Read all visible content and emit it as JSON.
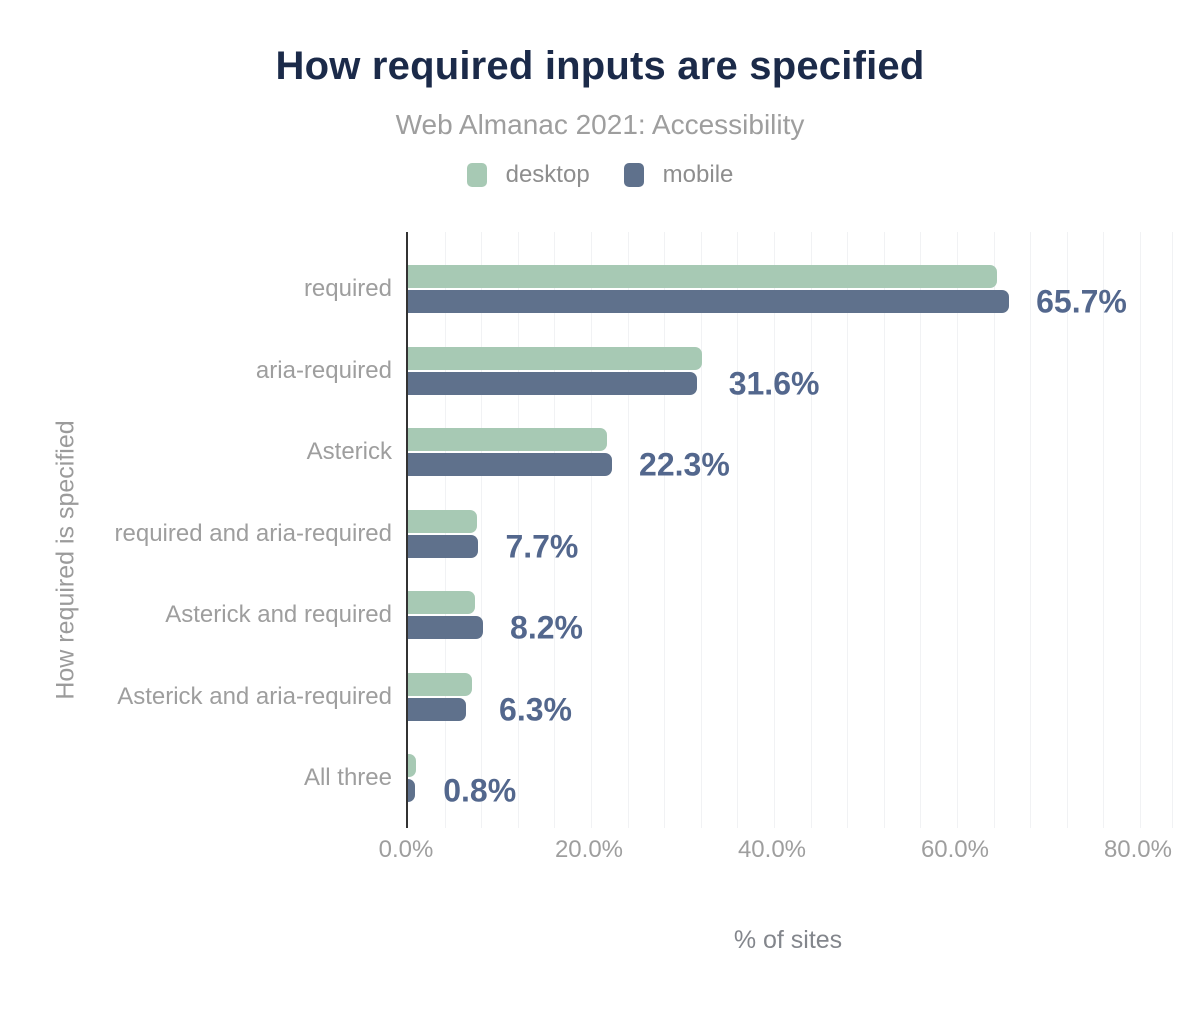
{
  "header": {
    "title": "How required inputs are specified",
    "subtitle": "Web Almanac 2021: Accessibility"
  },
  "legend": {
    "items": [
      {
        "label": "desktop",
        "color": "#a7c9b4"
      },
      {
        "label": "mobile",
        "color": "#5f718c"
      }
    ]
  },
  "axes": {
    "x_title": "% of sites",
    "y_title": "How required is specified",
    "x_ticks": [
      {
        "label": "0.0%",
        "value": 0
      },
      {
        "label": "20.0%",
        "value": 20
      },
      {
        "label": "40.0%",
        "value": 40
      },
      {
        "label": "60.0%",
        "value": 60
      },
      {
        "label": "80.0%",
        "value": 80
      }
    ]
  },
  "chart_data": {
    "type": "bar",
    "orientation": "horizontal",
    "title": "How required inputs are specified",
    "subtitle": "Web Almanac 2021: Accessibility",
    "xlabel": "% of sites",
    "ylabel": "How required is specified",
    "xlim": [
      0,
      83.5
    ],
    "gridline_step": 4,
    "grid": "vertical minor gridlines every 4%, no horizontal gridlines",
    "legend_position": "top-center",
    "categories": [
      "required",
      "aria-required",
      "Asterick",
      "required and aria-required",
      "Asterick and required",
      "Asterick and aria-required",
      "All three"
    ],
    "series": [
      {
        "name": "desktop",
        "color": "#a7c9b4",
        "values": [
          64.4,
          32.1,
          21.7,
          7.5,
          7.3,
          7.0,
          0.9
        ]
      },
      {
        "name": "mobile",
        "color": "#5f718c",
        "values": [
          65.7,
          31.6,
          22.3,
          7.7,
          8.2,
          6.3,
          0.8
        ]
      }
    ],
    "data_labels": {
      "labeled_series": "mobile",
      "labels": [
        "65.7%",
        "31.6%",
        "22.3%",
        "7.7%",
        "8.2%",
        "6.3%",
        "0.8%"
      ],
      "color": "#53678d"
    }
  },
  "colors": {
    "background": "#ffffff",
    "title": "#1b2a49",
    "subtitle": "#9e9e9e",
    "axis_line": "#333333",
    "gridline": "#f1f2f4",
    "tick_label": "#9e9e9e",
    "category_label": "#9e9e9e",
    "value_label": "#53678d"
  }
}
